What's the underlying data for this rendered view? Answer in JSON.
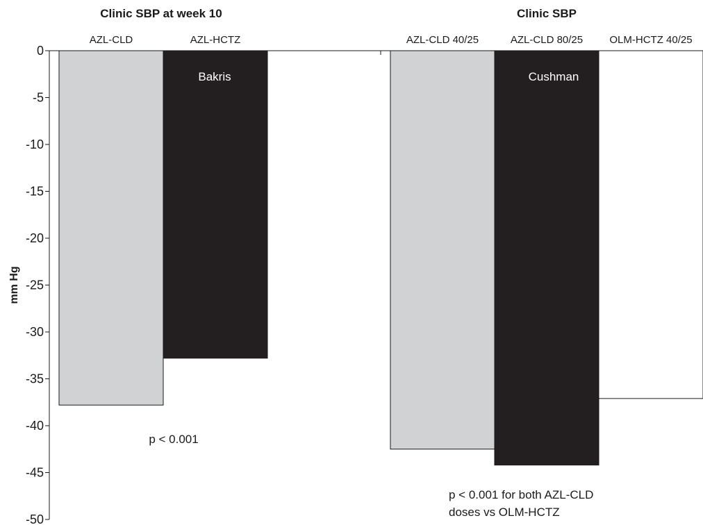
{
  "colors": {
    "light_gray": "#d1d2d4",
    "black": "#231f20",
    "white": "#ffffff"
  },
  "chart_data": {
    "type": "bar",
    "ylabel": "mm Hg",
    "ylim": [
      -50,
      0
    ],
    "yticks": [
      0,
      -5,
      -10,
      -15,
      -20,
      -25,
      -30,
      -35,
      -40,
      -45,
      -50
    ],
    "grid": false,
    "panels": [
      {
        "title": "Clinic SBP at week 10",
        "study": "Bakris",
        "annotation": [
          "p < 0.001"
        ],
        "categories": [
          "AZL-CLD",
          "AZL-HCTZ"
        ],
        "values": [
          -37.8,
          -32.8
        ],
        "colors": [
          "#d1d2d4",
          "#231f20"
        ]
      },
      {
        "title": "Clinic SBP",
        "study": "Cushman",
        "annotation": [
          "p < 0.001 for both AZL-CLD",
          "doses vs OLM-HCTZ"
        ],
        "categories": [
          "AZL-CLD 40/25",
          "AZL-CLD 80/25",
          "OLM-HCTZ 40/25"
        ],
        "values": [
          -42.5,
          -44.2,
          -37.1
        ],
        "colors": [
          "#d1d2d4",
          "#231f20",
          "#ffffff"
        ]
      }
    ]
  }
}
